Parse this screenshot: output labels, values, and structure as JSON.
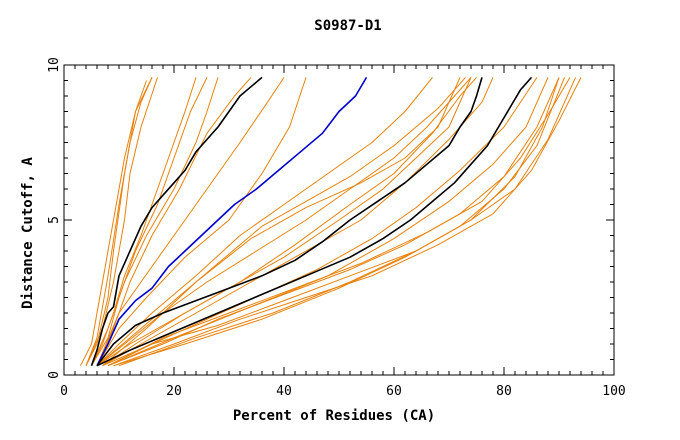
{
  "chart_data": {
    "type": "line",
    "title": "S0987-D1",
    "xlabel": "Percent of Residues (CA)",
    "ylabel": "Distance Cutoff, A",
    "xlim": [
      0,
      100
    ],
    "ylim": [
      0,
      10
    ],
    "x_ticks": [
      "0",
      "20",
      "40",
      "60",
      "80",
      "100"
    ],
    "y_ticks": [
      "0",
      "5",
      "10"
    ],
    "grid": false,
    "colors": {
      "orange": "#E8820C",
      "black": "#000000",
      "blue": "#0000CC"
    },
    "series": [
      {
        "color": "orange",
        "points": [
          [
            3,
            0.3
          ],
          [
            5,
            1
          ],
          [
            6,
            2
          ],
          [
            7,
            3
          ],
          [
            9,
            5
          ],
          [
            11,
            7
          ],
          [
            13,
            8.5
          ],
          [
            15,
            9.5
          ]
        ]
      },
      {
        "color": "orange",
        "points": [
          [
            4,
            0.3
          ],
          [
            6,
            1.2
          ],
          [
            7,
            2.2
          ],
          [
            8,
            3.2
          ],
          [
            10,
            5.5
          ],
          [
            12,
            7.5
          ],
          [
            14,
            8.8
          ],
          [
            16,
            9.6
          ]
        ]
      },
      {
        "color": "orange",
        "points": [
          [
            4,
            0.3
          ],
          [
            6,
            1
          ],
          [
            8,
            2.5
          ],
          [
            9,
            4
          ],
          [
            11,
            6.5
          ],
          [
            13,
            8.5
          ],
          [
            16,
            9.6
          ]
        ]
      },
      {
        "color": "orange",
        "points": [
          [
            4,
            0.3
          ],
          [
            7,
            1.5
          ],
          [
            9,
            3
          ],
          [
            11,
            5
          ],
          [
            12,
            6.5
          ],
          [
            14,
            8
          ],
          [
            17,
            9.6
          ]
        ]
      },
      {
        "color": "orange",
        "points": [
          [
            5,
            0.3
          ],
          [
            7,
            1
          ],
          [
            9,
            2
          ],
          [
            11,
            3.2
          ],
          [
            14,
            4.5
          ],
          [
            16,
            5.5
          ],
          [
            19,
            7
          ],
          [
            22,
            8.5
          ],
          [
            24,
            9.6
          ]
        ]
      },
      {
        "color": "orange",
        "points": [
          [
            5,
            0.3
          ],
          [
            8,
            1.2
          ],
          [
            10,
            2.5
          ],
          [
            13,
            4
          ],
          [
            17,
            5.5
          ],
          [
            20,
            7
          ],
          [
            23,
            8.5
          ],
          [
            26,
            9.6
          ]
        ]
      },
      {
        "color": "orange",
        "points": [
          [
            5,
            0.3
          ],
          [
            8,
            1.5
          ],
          [
            11,
            3
          ],
          [
            15,
            4.5
          ],
          [
            20,
            6
          ],
          [
            24,
            7.5
          ],
          [
            26,
            8.5
          ],
          [
            28,
            9.6
          ]
        ]
      },
      {
        "color": "orange",
        "points": [
          [
            6,
            0.3
          ],
          [
            9,
            1.5
          ],
          [
            12,
            3
          ],
          [
            16,
            4.5
          ],
          [
            21,
            6
          ],
          [
            26,
            7.8
          ],
          [
            31,
            9
          ],
          [
            34,
            9.6
          ]
        ]
      },
      {
        "color": "orange",
        "points": [
          [
            6,
            0.3
          ],
          [
            10,
            2
          ],
          [
            14,
            3
          ],
          [
            20,
            4.5
          ],
          [
            26,
            6
          ],
          [
            32,
            7.5
          ],
          [
            37,
            8.8
          ],
          [
            40,
            9.6
          ]
        ]
      },
      {
        "color": "orange",
        "points": [
          [
            6,
            0.3
          ],
          [
            10,
            1.5
          ],
          [
            15,
            2.5
          ],
          [
            22,
            3.8
          ],
          [
            30,
            5
          ],
          [
            36,
            6.5
          ],
          [
            41,
            8
          ],
          [
            44,
            9.6
          ]
        ]
      },
      {
        "color": "orange",
        "points": [
          [
            6,
            0.3
          ],
          [
            10,
            1
          ],
          [
            16,
            2
          ],
          [
            24,
            3.2
          ],
          [
            32,
            4.5
          ],
          [
            40,
            5.5
          ],
          [
            48,
            6.5
          ],
          [
            56,
            7.5
          ],
          [
            62,
            8.5
          ],
          [
            67,
            9.6
          ]
        ]
      },
      {
        "color": "orange",
        "points": [
          [
            6,
            0.3
          ],
          [
            11,
            1
          ],
          [
            18,
            2
          ],
          [
            26,
            3
          ],
          [
            35,
            4
          ],
          [
            44,
            5
          ],
          [
            52,
            6
          ],
          [
            60,
            7
          ],
          [
            66,
            8
          ],
          [
            71,
            9
          ],
          [
            74,
            9.6
          ]
        ]
      },
      {
        "color": "orange",
        "points": [
          [
            6,
            0.3
          ],
          [
            12,
            1
          ],
          [
            20,
            1.8
          ],
          [
            30,
            2.8
          ],
          [
            40,
            3.8
          ],
          [
            50,
            5
          ],
          [
            58,
            6
          ],
          [
            64,
            7
          ],
          [
            70,
            8
          ],
          [
            74,
            9.6
          ]
        ]
      },
      {
        "color": "orange",
        "points": [
          [
            7,
            0.3
          ],
          [
            13,
            1
          ],
          [
            22,
            2
          ],
          [
            32,
            3
          ],
          [
            42,
            4.2
          ],
          [
            52,
            5.5
          ],
          [
            60,
            6.5
          ],
          [
            67,
            7.8
          ],
          [
            72,
            9
          ],
          [
            75,
            9.6
          ]
        ]
      },
      {
        "color": "orange",
        "points": [
          [
            6,
            0.3
          ],
          [
            12,
            1.2
          ],
          [
            20,
            2.4
          ],
          [
            28,
            3.6
          ],
          [
            36,
            4.8
          ],
          [
            44,
            5.6
          ],
          [
            52,
            6.4
          ],
          [
            60,
            7.4
          ],
          [
            68,
            8.6
          ],
          [
            73,
            9.6
          ]
        ]
      },
      {
        "color": "orange",
        "points": [
          [
            7,
            0.3
          ],
          [
            14,
            1
          ],
          [
            24,
            2
          ],
          [
            34,
            3
          ],
          [
            44,
            4
          ],
          [
            54,
            5
          ],
          [
            62,
            6.2
          ],
          [
            70,
            7.6
          ],
          [
            76,
            8.8
          ],
          [
            78,
            9.6
          ]
        ]
      },
      {
        "color": "orange",
        "points": [
          [
            8,
            0.3
          ],
          [
            16,
            1
          ],
          [
            26,
            1.8
          ],
          [
            36,
            2.6
          ],
          [
            46,
            3.4
          ],
          [
            56,
            4.4
          ],
          [
            64,
            5.4
          ],
          [
            72,
            6.6
          ],
          [
            80,
            8
          ],
          [
            86,
            9.6
          ]
        ]
      },
      {
        "color": "orange",
        "points": [
          [
            8,
            0.3
          ],
          [
            18,
            1
          ],
          [
            28,
            1.8
          ],
          [
            40,
            2.6
          ],
          [
            52,
            3.4
          ],
          [
            62,
            4.2
          ],
          [
            72,
            5.2
          ],
          [
            80,
            6.4
          ],
          [
            86,
            8
          ],
          [
            90,
            9.6
          ]
        ]
      },
      {
        "color": "orange",
        "points": [
          [
            9,
            0.3
          ],
          [
            20,
            1
          ],
          [
            32,
            1.8
          ],
          [
            44,
            2.5
          ],
          [
            56,
            3.2
          ],
          [
            68,
            4.2
          ],
          [
            78,
            5.2
          ],
          [
            85,
            6.6
          ],
          [
            90,
            8.2
          ],
          [
            94,
            9.6
          ]
        ]
      },
      {
        "color": "orange",
        "points": [
          [
            8,
            0.3
          ],
          [
            18,
            1.2
          ],
          [
            30,
            2
          ],
          [
            42,
            2.8
          ],
          [
            54,
            3.6
          ],
          [
            66,
            4.6
          ],
          [
            76,
            5.6
          ],
          [
            83,
            7
          ],
          [
            88,
            8.4
          ],
          [
            92,
            9.6
          ]
        ]
      },
      {
        "color": "orange",
        "points": [
          [
            7,
            0.3
          ],
          [
            16,
            1
          ],
          [
            28,
            1.6
          ],
          [
            40,
            2.4
          ],
          [
            52,
            3.2
          ],
          [
            64,
            4
          ],
          [
            74,
            5
          ],
          [
            82,
            6
          ],
          [
            88,
            7.6
          ],
          [
            93,
            9.6
          ]
        ]
      },
      {
        "color": "orange",
        "points": [
          [
            8,
            0.3
          ],
          [
            20,
            1.2
          ],
          [
            34,
            2.2
          ],
          [
            48,
            3.2
          ],
          [
            60,
            4.4
          ],
          [
            70,
            5.6
          ],
          [
            78,
            6.8
          ],
          [
            84,
            8
          ],
          [
            88,
            9.6
          ]
        ]
      },
      {
        "color": "orange",
        "points": [
          [
            7,
            0.3
          ],
          [
            15,
            1.5
          ],
          [
            24,
            3
          ],
          [
            34,
            4.4
          ],
          [
            44,
            5.4
          ],
          [
            54,
            6.2
          ],
          [
            62,
            7
          ],
          [
            68,
            8
          ],
          [
            72,
            9.6
          ]
        ]
      },
      {
        "color": "orange",
        "points": [
          [
            9,
            0.3
          ],
          [
            22,
            1
          ],
          [
            36,
            1.8
          ],
          [
            50,
            2.8
          ],
          [
            62,
            3.8
          ],
          [
            72,
            4.8
          ],
          [
            80,
            6
          ],
          [
            86,
            7.4
          ],
          [
            91,
            9.6
          ]
        ]
      },
      {
        "color": "orange",
        "points": [
          [
            10,
            0.3
          ],
          [
            24,
            1.2
          ],
          [
            38,
            2
          ],
          [
            52,
            3
          ],
          [
            64,
            4
          ],
          [
            74,
            5
          ],
          [
            82,
            6.4
          ],
          [
            87,
            8
          ],
          [
            90,
            9.6
          ]
        ]
      },
      {
        "color": "black",
        "points": [
          [
            5,
            0.3
          ],
          [
            6,
            0.8
          ],
          [
            7,
            1.5
          ],
          [
            8,
            2
          ],
          [
            9,
            2.2
          ],
          [
            10,
            3.2
          ],
          [
            12,
            4
          ],
          [
            14,
            4.8
          ],
          [
            16,
            5.4
          ],
          [
            18,
            5.8
          ],
          [
            20,
            6.2
          ],
          [
            22,
            6.6
          ],
          [
            24,
            7.2
          ],
          [
            26,
            7.6
          ],
          [
            28,
            8
          ],
          [
            30,
            8.5
          ],
          [
            32,
            9
          ],
          [
            34,
            9.3
          ],
          [
            36,
            9.6
          ]
        ]
      },
      {
        "color": "blue",
        "points": [
          [
            6,
            0.3
          ],
          [
            8,
            1
          ],
          [
            10,
            1.8
          ],
          [
            13,
            2.4
          ],
          [
            16,
            2.8
          ],
          [
            19,
            3.5
          ],
          [
            22,
            4
          ],
          [
            25,
            4.5
          ],
          [
            28,
            5
          ],
          [
            31,
            5.5
          ],
          [
            35,
            6
          ],
          [
            39,
            6.6
          ],
          [
            43,
            7.2
          ],
          [
            47,
            7.8
          ],
          [
            50,
            8.5
          ],
          [
            53,
            9
          ],
          [
            55,
            9.6
          ]
        ]
      },
      {
        "color": "black",
        "points": [
          [
            6,
            0.3
          ],
          [
            9,
            1
          ],
          [
            13,
            1.6
          ],
          [
            18,
            2
          ],
          [
            24,
            2.4
          ],
          [
            30,
            2.8
          ],
          [
            36,
            3.2
          ],
          [
            42,
            3.7
          ],
          [
            47,
            4.3
          ],
          [
            52,
            5
          ],
          [
            57,
            5.6
          ],
          [
            62,
            6.2
          ],
          [
            66,
            6.8
          ],
          [
            70,
            7.4
          ],
          [
            72,
            8
          ],
          [
            74,
            8.5
          ],
          [
            75,
            9
          ],
          [
            76,
            9.6
          ]
        ]
      },
      {
        "color": "black",
        "points": [
          [
            6,
            0.3
          ],
          [
            12,
            0.8
          ],
          [
            20,
            1.4
          ],
          [
            28,
            2
          ],
          [
            36,
            2.6
          ],
          [
            44,
            3.2
          ],
          [
            52,
            3.8
          ],
          [
            58,
            4.4
          ],
          [
            63,
            5
          ],
          [
            67,
            5.6
          ],
          [
            71,
            6.2
          ],
          [
            74,
            6.8
          ],
          [
            77,
            7.4
          ],
          [
            79,
            8
          ],
          [
            81,
            8.6
          ],
          [
            83,
            9.2
          ],
          [
            85,
            9.6
          ]
        ]
      }
    ]
  }
}
